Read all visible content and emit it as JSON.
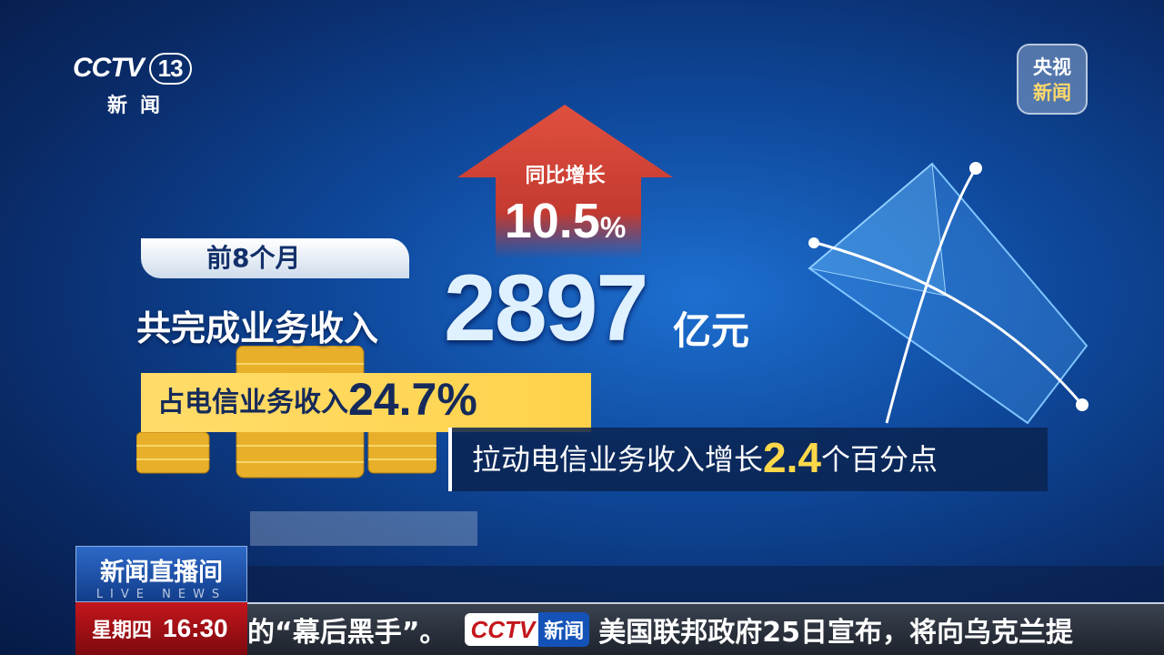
{
  "channel": {
    "logo": "CCTV",
    "number": "13",
    "subtitle": "新闻",
    "badge_line1": "央视",
    "badge_line2": "新闻"
  },
  "graphic": {
    "arrow_label": "同比增长",
    "arrow_value": "10.5",
    "arrow_unit": "%",
    "period": "前8个月",
    "revenue_label": "共完成业务收入",
    "revenue_value": "2897",
    "revenue_unit": "亿元",
    "share_label": "占电信业务收入",
    "share_value": "24.7%",
    "growth_label": "拉动电信业务收入增长",
    "growth_value": "2.4",
    "growth_unit": "个百分点",
    "colors": {
      "arrow": "#d9463a",
      "highlight": "#ffd84a",
      "banner": "#ffd24a"
    }
  },
  "lower_third": {
    "program": "新闻直播间",
    "program_en": "LIVE NEWS",
    "weekday": "星期四",
    "time": "16:30"
  },
  "ticker": {
    "text_left": "的“幕后黑手”。",
    "logo": "CCTV",
    "logo_tag": "新闻",
    "text_right": "美国联邦政府25日宣布，将向乌克兰提"
  }
}
